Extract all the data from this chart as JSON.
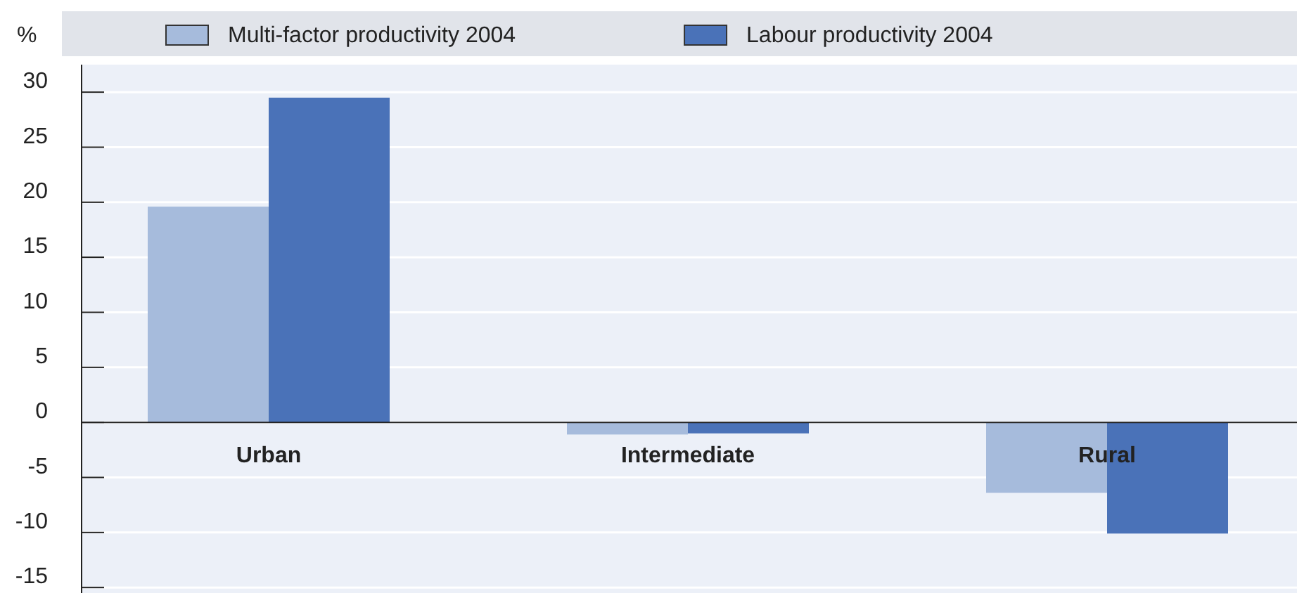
{
  "chart_data": {
    "type": "bar",
    "ylabel": "%",
    "categories": [
      "Urban",
      "Intermediate",
      "Rural"
    ],
    "series": [
      {
        "name": "Multi-factor productivity 2004",
        "color": "#a6bbdc",
        "values": [
          19.6,
          -1.1,
          -6.4
        ]
      },
      {
        "name": "Labour productivity 2004",
        "color": "#4a72b8",
        "values": [
          29.5,
          -1.0,
          -10.1
        ]
      }
    ],
    "ylim": [
      -15.5,
      32.5
    ],
    "yticks": [
      -15,
      -10,
      -5,
      0,
      5,
      10,
      15,
      20,
      25,
      30
    ],
    "grid": "y",
    "legend": "top"
  }
}
